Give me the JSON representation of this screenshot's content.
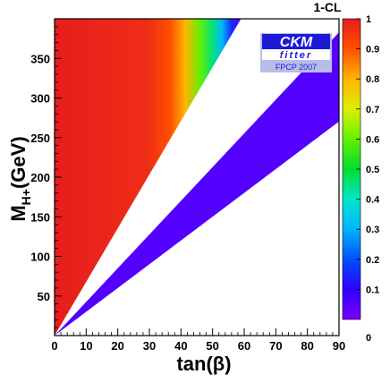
{
  "chart_data": {
    "type": "heatmap",
    "title": "",
    "colorbar_title": "1-CL",
    "xlabel": "tan(β)",
    "ylabel_main": "M",
    "ylabel_sub": "H+",
    "ylabel_unit": "(GeV)",
    "xlim": [
      0,
      90
    ],
    "ylim": [
      0,
      400
    ],
    "xticks": [
      "0",
      "10",
      "20",
      "30",
      "40",
      "50",
      "60",
      "70",
      "80",
      "90"
    ],
    "yticks": [
      "50",
      "100",
      "150",
      "200",
      "250",
      "300",
      "350"
    ],
    "colorbar_ticks": [
      "0",
      "0.1",
      "0.2",
      "0.3",
      "0.4",
      "0.5",
      "0.6",
      "0.7",
      "0.8",
      "0.9",
      "1"
    ],
    "colorbar_range": [
      0,
      1
    ],
    "regions": [
      {
        "name": "upper-left allowed region",
        "boundary_tanb_over_mH": [
          0.0,
          0.1475
        ],
        "core_value": 1.0,
        "edge_value": 0.05
      },
      {
        "name": "lower-right allowed band",
        "boundary_tanb_over_mH": [
          0.235,
          0.333
        ],
        "core_value": 1.0,
        "edge_value": 0.05
      }
    ],
    "logo": {
      "line1": "CKM",
      "line2": "fitter",
      "line3": "FPCP 2007"
    }
  },
  "colors": {
    "scale": [
      "#7a00ff",
      "#2d00ff",
      "#0050ff",
      "#00b4ff",
      "#00e6c8",
      "#00dc32",
      "#64f000",
      "#dcf000",
      "#ffb400",
      "#ff5000",
      "#e61e1e"
    ],
    "logo_blue": "#1a1ad8",
    "logo_panel": "#b8bce8"
  }
}
